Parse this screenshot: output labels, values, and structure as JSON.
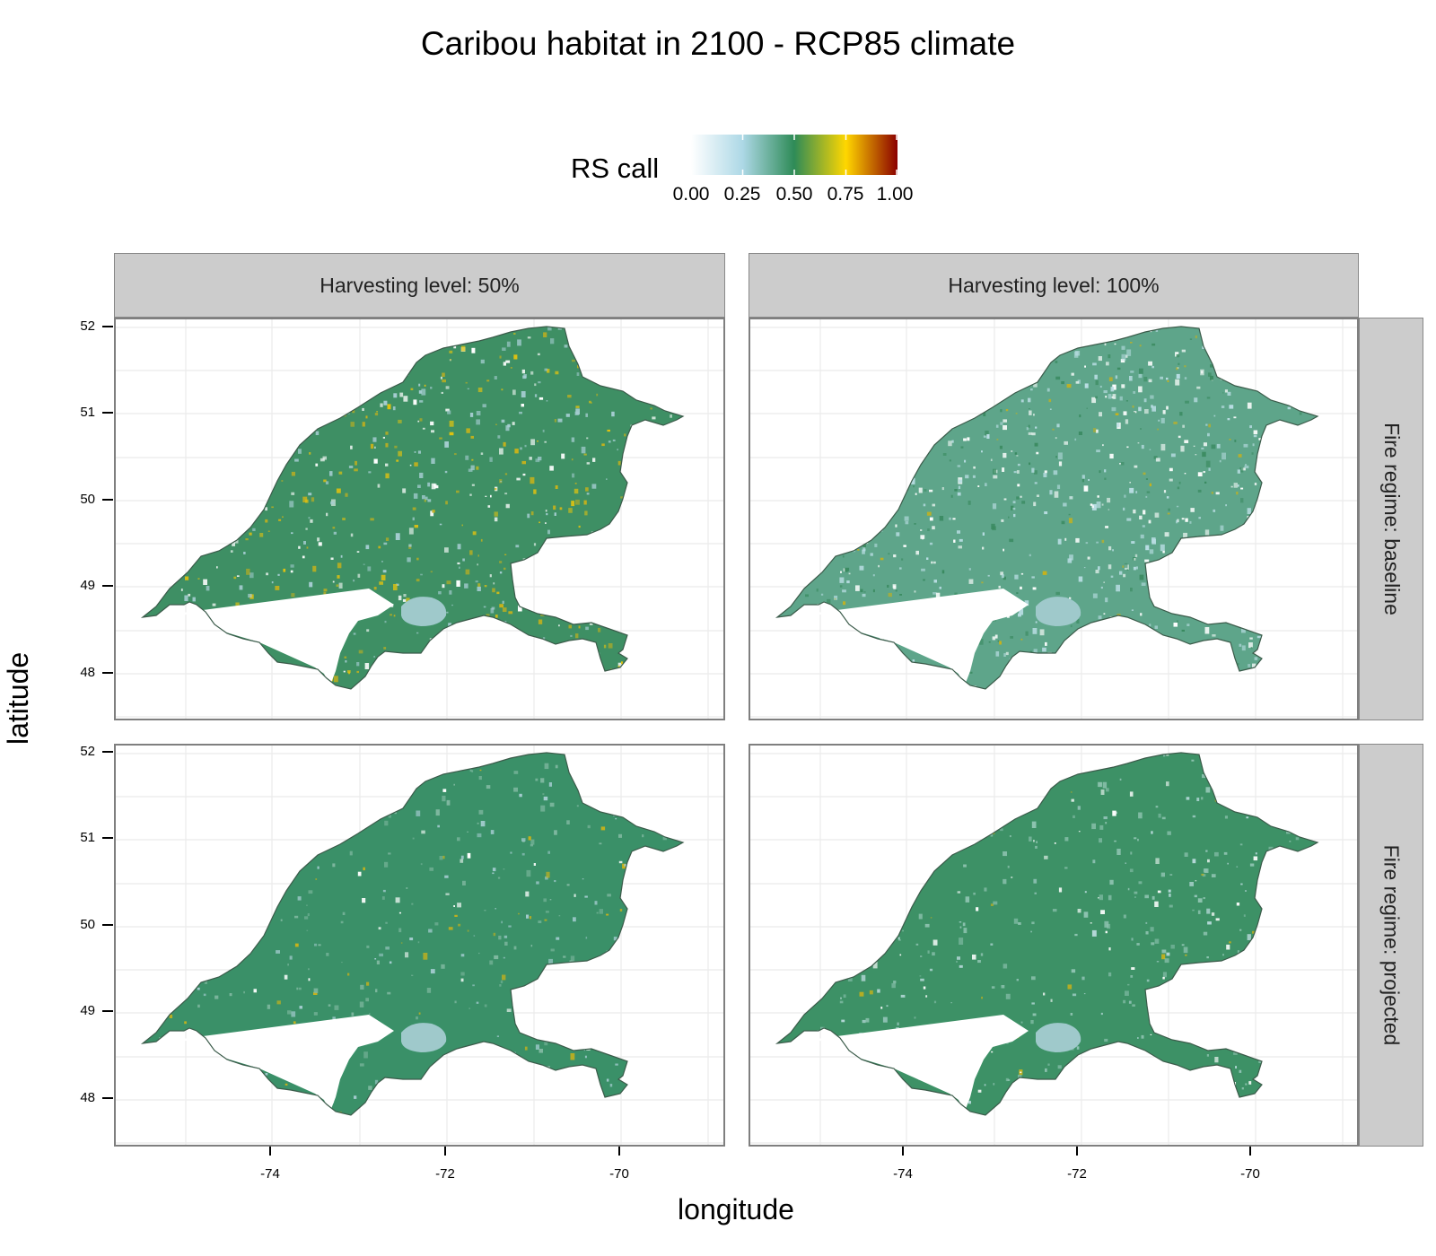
{
  "title": "Caribou habitat in 2100 - RCP85 climate",
  "legend": {
    "title": "RS call",
    "ticks": [
      "0.00",
      "0.25",
      "0.50",
      "0.75",
      "1.00"
    ],
    "tick_values": [
      0,
      0.25,
      0.5,
      0.75,
      1
    ],
    "colors": [
      "#ffffff",
      "#add8e6",
      "#2e8b57",
      "#ffd700",
      "#8b0000"
    ]
  },
  "axes": {
    "x_title": "longitude",
    "y_title": "latitude",
    "x_ticks": [
      "-74",
      "-72",
      "-70"
    ],
    "y_ticks": [
      "52",
      "51",
      "50",
      "49",
      "48"
    ]
  },
  "facets": {
    "columns": [
      "Harvesting level: 50%",
      "Harvesting level: 100%"
    ],
    "rows": [
      "Fire regime: baseline",
      "Fire regime: projected"
    ]
  },
  "colors": {
    "lake": "#9fc9cb",
    "outline": "#3b5b4a",
    "grid": "#ebebeb"
  }
}
